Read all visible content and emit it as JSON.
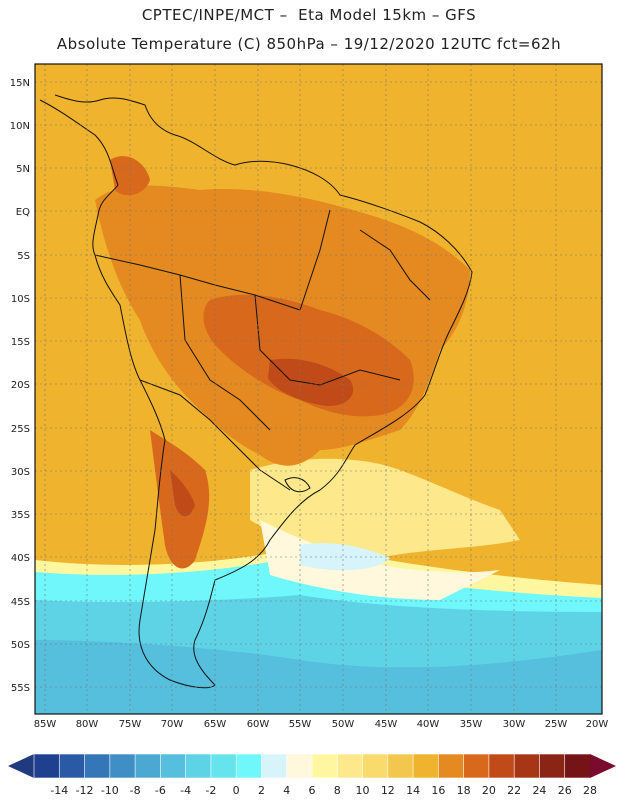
{
  "header": {
    "line1": "CPTEC/INPE/MCT –  Eta Model 15km – GFS",
    "line2": "Absolute Temperature (C) 850hPa – 19/12/2020 12UTC fct=62h"
  },
  "map": {
    "lat_labels": [
      "15N",
      "10N",
      "5N",
      "EQ",
      "5S",
      "10S",
      "15S",
      "20S",
      "25S",
      "30S",
      "35S",
      "40S",
      "45S",
      "50S",
      "55S"
    ],
    "lon_labels": [
      "85W",
      "80W",
      "75W",
      "70W",
      "65W",
      "60W",
      "55W",
      "50W",
      "45W",
      "40W",
      "35W",
      "30W",
      "25W",
      "20W"
    ]
  },
  "colorbar": {
    "ticks": [
      "-14",
      "-12",
      "-10",
      "-8",
      "-6",
      "-4",
      "-2",
      "0",
      "2",
      "4",
      "6",
      "8",
      "10",
      "12",
      "14",
      "16",
      "18",
      "20",
      "22",
      "24",
      "26",
      "28"
    ],
    "colors": [
      "#1f3f8f",
      "#2a5aa6",
      "#3476b8",
      "#3f8fc6",
      "#4aa8d3",
      "#55bfdd",
      "#5fd3e6",
      "#66e4ee",
      "#6ff7fb",
      "#d7f4fb",
      "#fff8dc",
      "#fff7a0",
      "#fde98b",
      "#f9da6d",
      "#f3c74e",
      "#f0b32e",
      "#e48a20",
      "#d7681c",
      "#c04b18",
      "#a73616",
      "#8a2414",
      "#751416"
    ],
    "under_color": "#203a80",
    "over_color": "#7a0a2e"
  }
}
